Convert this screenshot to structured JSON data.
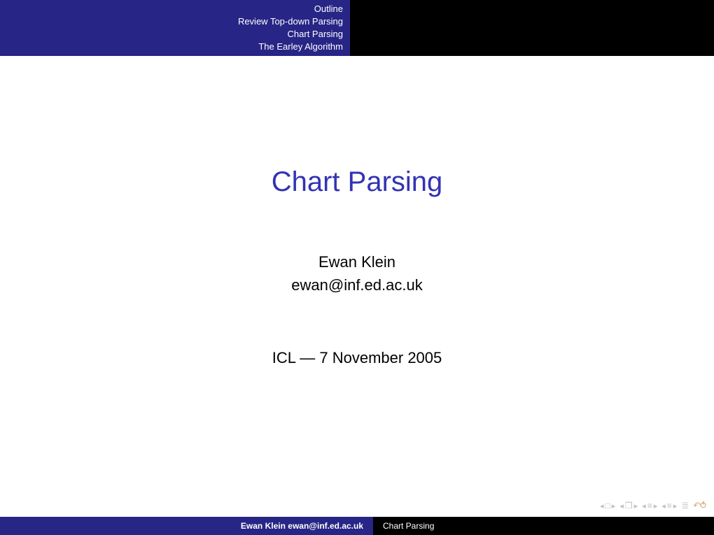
{
  "header": {
    "sections": [
      "Outline",
      "Review Top-down Parsing",
      "Chart Parsing",
      "The Earley Algorithm"
    ]
  },
  "main": {
    "title": "Chart Parsing",
    "author_name": "Ewan Klein",
    "author_email": "ewan@inf.ed.ac.uk",
    "venue_date": "ICL — 7 November 2005"
  },
  "footer": {
    "author_line": "Ewan Klein ewan@inf.ed.ac.uk",
    "title_short": "Chart Parsing"
  },
  "nav": {
    "frame_back": "◂",
    "frame_icon": "□",
    "frame_fwd": "▸",
    "subsec_back": "◂",
    "subsec_icon": "❐",
    "subsec_fwd": "▸",
    "sec_back": "◂",
    "sec_icon": "≡",
    "sec_fwd": "▸",
    "pres_back": "◂",
    "pres_icon": "≡",
    "pres_fwd": "▸",
    "equiv": "≣",
    "undo": "↶⥀"
  },
  "colors": {
    "header_bg": "#272586",
    "header_right_bg": "#000000",
    "title_color": "#3333b3",
    "body_bg": "#ffffff",
    "nav_icon_color": "#c0c0c0",
    "undo_color": "#d4a878"
  }
}
